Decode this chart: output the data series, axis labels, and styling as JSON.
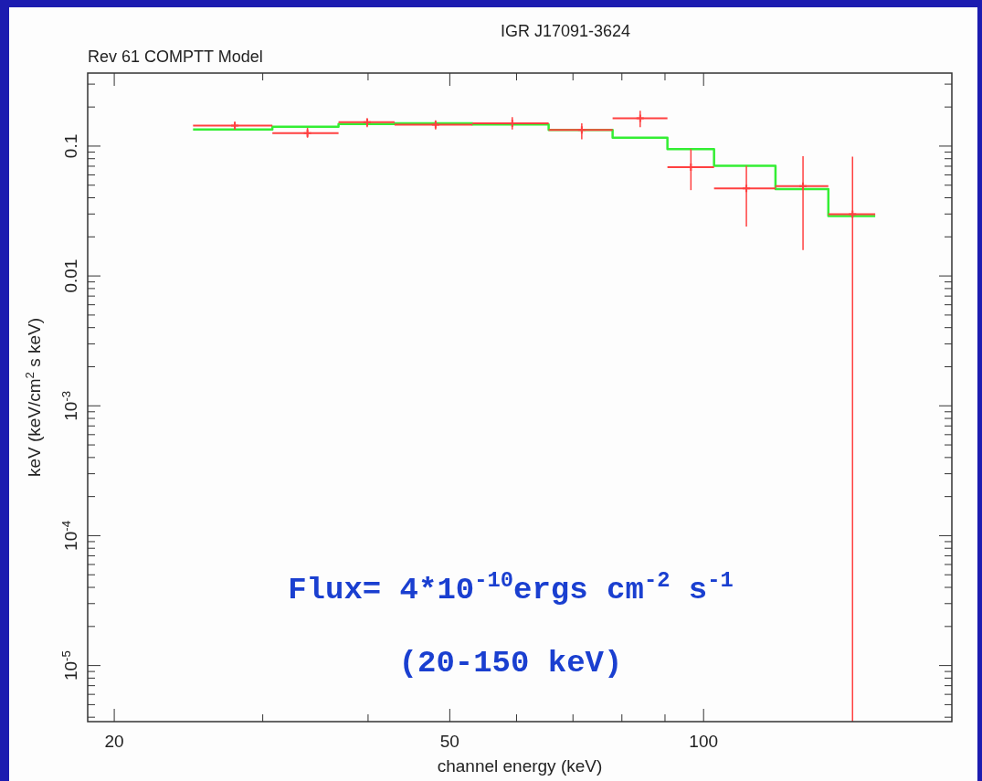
{
  "chart_data": {
    "type": "scatter",
    "title": "IGR J17091-3624",
    "subtitle": "Rev 61 COMPTT Model",
    "xlabel": "channel energy (keV)",
    "ylabel": "keV (keV/cm$^{2}$ s keV)",
    "log": "xy",
    "xlim": [
      18.6,
      197
    ],
    "ylim": [
      3.7e-06,
      0.365
    ],
    "xticks": [
      20,
      {
        "value": 30,
        "label": null
      },
      {
        "value": 40,
        "label": null
      },
      50,
      {
        "value": 60,
        "label": null
      },
      {
        "value": 70,
        "label": null
      },
      {
        "value": 80,
        "label": null
      },
      {
        "value": 90,
        "label": null
      },
      100
    ],
    "yticks": [
      {
        "value": 4e-06,
        "label": null
      },
      {
        "value": 5e-06,
        "label": null
      },
      {
        "value": 6e-06,
        "label": null
      },
      {
        "value": 7e-06,
        "label": null
      },
      {
        "value": 8e-06,
        "label": null
      },
      {
        "value": 9e-06,
        "label": null
      },
      {
        "value": 1e-05,
        "label": "10$^{-5}$"
      },
      {
        "value": 2e-05,
        "label": null
      },
      {
        "value": 3e-05,
        "label": null
      },
      {
        "value": 4e-05,
        "label": null
      },
      {
        "value": 5e-05,
        "label": null
      },
      {
        "value": 6e-05,
        "label": null
      },
      {
        "value": 7e-05,
        "label": null
      },
      {
        "value": 8e-05,
        "label": null
      },
      {
        "value": 9e-05,
        "label": null
      },
      {
        "value": 0.0001,
        "label": "10$^{-4}$"
      },
      {
        "value": 0.0002,
        "label": null
      },
      {
        "value": 0.0003,
        "label": null
      },
      {
        "value": 0.0004,
        "label": null
      },
      {
        "value": 0.0005,
        "label": null
      },
      {
        "value": 0.0006,
        "label": null
      },
      {
        "value": 0.0007,
        "label": null
      },
      {
        "value": 0.0008,
        "label": null
      },
      {
        "value": 0.0009,
        "label": null
      },
      {
        "value": 0.001,
        "label": "10$^{-3}$"
      },
      {
        "value": 0.002,
        "label": null
      },
      {
        "value": 0.003,
        "label": null
      },
      {
        "value": 0.004,
        "label": null
      },
      {
        "value": 0.005,
        "label": null
      },
      {
        "value": 0.006,
        "label": null
      },
      {
        "value": 0.007,
        "label": null
      },
      {
        "value": 0.008,
        "label": null
      },
      {
        "value": 0.009,
        "label": null
      },
      0.01,
      {
        "value": 0.02,
        "label": null
      },
      {
        "value": 0.03,
        "label": null
      },
      {
        "value": 0.04,
        "label": null
      },
      {
        "value": 0.05,
        "label": null
      },
      {
        "value": 0.06,
        "label": null
      },
      {
        "value": 0.07,
        "label": null
      },
      {
        "value": 0.08,
        "label": null
      },
      {
        "value": 0.09,
        "label": null
      },
      0.1,
      {
        "value": 0.2,
        "label": null
      },
      {
        "value": 0.3,
        "label": null
      }
    ],
    "series": [
      {
        "color": "#ff4040",
        "marker": "cross",
        "x": [
          27.8,
          33.9,
          39.9,
          48.1,
          59.3,
          71.7,
          84.1,
          96.6,
          112.4,
          131.2,
          150.2
        ],
        "values": [
          0.144,
          0.126,
          0.153,
          0.146,
          0.15,
          0.133,
          0.164,
          0.0689,
          0.0473,
          0.0491,
          0.0299
        ],
        "xerrors": [
          [
            24.8,
            30.8
          ],
          [
            30.8,
            36.9
          ],
          [
            36.9,
            43.0
          ],
          [
            43.0,
            53.2
          ],
          [
            53.2,
            65.5
          ],
          [
            65.5,
            78.0
          ],
          [
            78.0,
            90.6
          ],
          [
            90.6,
            102.9
          ],
          [
            102.9,
            121.7
          ],
          [
            121.7,
            140.6
          ],
          [
            140.6,
            159.8
          ]
        ],
        "errors": [
          [
            0.134,
            0.154
          ],
          [
            0.116,
            0.138
          ],
          [
            0.14,
            0.164
          ],
          [
            0.134,
            0.158
          ],
          [
            0.134,
            0.167
          ],
          [
            0.113,
            0.15
          ],
          [
            0.14,
            0.187
          ],
          [
            0.0458,
            0.0948
          ],
          [
            0.024,
            0.0704
          ],
          [
            0.0158,
            0.0837
          ],
          [
            3.7e-06,
            0.0828
          ]
        ]
      },
      {
        "type": "step",
        "color": "#33ee33",
        "x": [
          24.8,
          30.8,
          36.9,
          43.0,
          53.2,
          65.5,
          78.0,
          90.6,
          102.9,
          121.7,
          140.6,
          159.8
        ],
        "values": [
          0.134,
          0.141,
          0.148,
          0.15,
          0.147,
          0.133,
          0.116,
          0.0948,
          0.0704,
          0.0467,
          0.0289,
          0.0289
        ]
      }
    ],
    "annotations": [
      "Flux= 4*10$^{-10}$ergs cm$^{-2}$ s$^{-1}$",
      "(20-150 keV)"
    ]
  }
}
